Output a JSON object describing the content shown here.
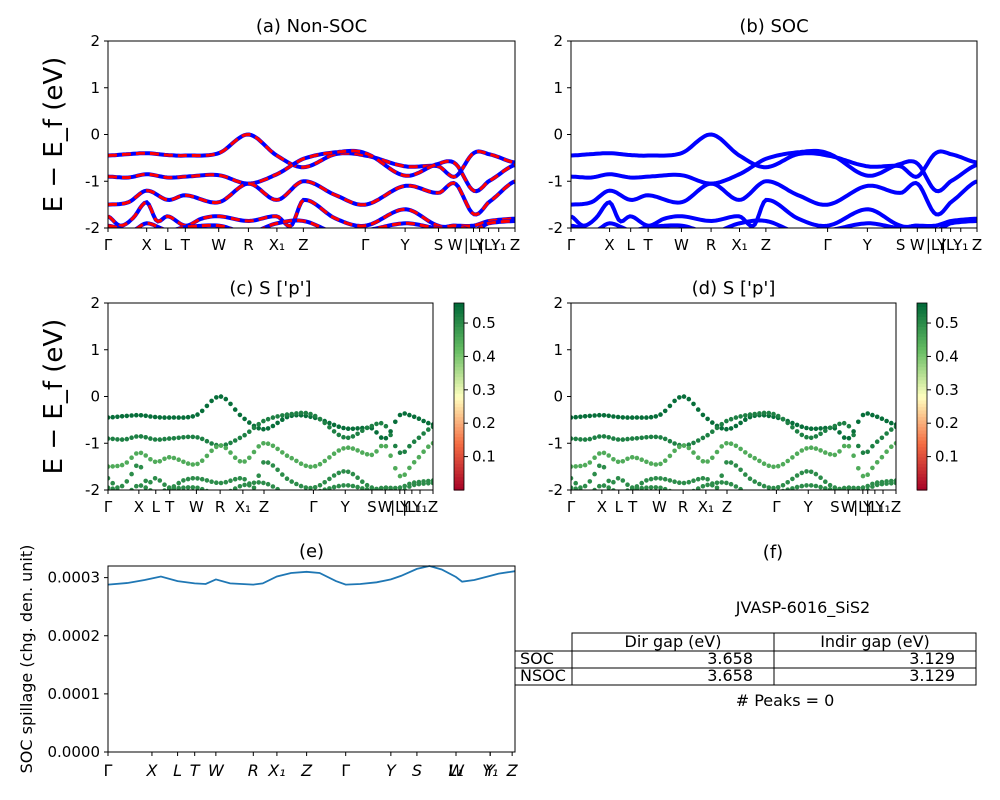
{
  "chart_data": [
    {
      "panel": "a",
      "type": "line",
      "title": "(a) Non-SOC",
      "ylabel": "E − E_f (eV)",
      "ylim": [
        -2,
        2
      ],
      "yticks": [
        -2,
        -1,
        0,
        1,
        2
      ],
      "xticks": [
        "Γ",
        "X",
        "L",
        "T",
        "W",
        "R",
        "X₁",
        "Z",
        "Γ",
        "Y",
        "S",
        "W",
        "|L₁",
        "Y",
        "|L₁",
        "Y₁",
        "Z"
      ],
      "x_kpath_positions": [
        0,
        0.095,
        0.147,
        0.19,
        0.272,
        0.345,
        0.415,
        0.48,
        0.632,
        0.73,
        0.812,
        0.853,
        0.898,
        0.913,
        0.935,
        0.96,
        1.0
      ],
      "series": [
        {
          "style": "blue solid + red dashed",
          "x": [
            0,
            0.05,
            0.095,
            0.147,
            0.19,
            0.272,
            0.345,
            0.415,
            0.48,
            0.56,
            0.632,
            0.73,
            0.812,
            0.853,
            0.898,
            0.935,
            1.0
          ],
          "values": [
            -0.45,
            -0.42,
            -0.4,
            -0.44,
            -0.45,
            -0.4,
            0.0,
            -0.45,
            -0.7,
            -0.42,
            -0.45,
            -0.68,
            -0.68,
            -0.9,
            -0.4,
            -0.42,
            -0.6
          ]
        },
        {
          "style": "blue solid + red dashed",
          "x": [
            0,
            0.05,
            0.095,
            0.147,
            0.19,
            0.272,
            0.345,
            0.415,
            0.48,
            0.56,
            0.632,
            0.73,
            0.812,
            0.853,
            0.898,
            0.935,
            1.0
          ],
          "values": [
            -0.9,
            -0.92,
            -0.85,
            -0.92,
            -0.9,
            -0.87,
            -1.05,
            -0.85,
            -0.52,
            -0.38,
            -0.4,
            -0.88,
            -0.63,
            -0.62,
            -1.2,
            -1.0,
            -0.65
          ]
        },
        {
          "style": "blue solid + red dashed",
          "x": [
            0,
            0.05,
            0.095,
            0.147,
            0.19,
            0.272,
            0.345,
            0.415,
            0.48,
            0.56,
            0.632,
            0.73,
            0.812,
            0.853,
            0.898,
            0.935,
            1.0
          ],
          "values": [
            -1.5,
            -1.45,
            -1.2,
            -1.4,
            -1.3,
            -1.45,
            -1.05,
            -1.4,
            -1.0,
            -1.3,
            -1.5,
            -1.1,
            -1.25,
            -1.05,
            -1.7,
            -1.45,
            -1.0
          ]
        },
        {
          "style": "blue solid + red dashed",
          "x": [
            0,
            0.03,
            0.06,
            0.095,
            0.12,
            0.147,
            0.19,
            0.23,
            0.272,
            0.345,
            0.415,
            0.45,
            0.48,
            0.56,
            0.632,
            0.73,
            0.812,
            0.853,
            0.898,
            0.935,
            1.0
          ],
          "values": [
            -1.75,
            -1.95,
            -1.8,
            -1.45,
            -1.85,
            -1.75,
            -1.95,
            -1.8,
            -1.75,
            -1.85,
            -1.75,
            -1.95,
            -1.4,
            -1.8,
            -1.95,
            -1.6,
            -1.95,
            -1.95,
            -1.95,
            -1.85,
            -1.8
          ]
        },
        {
          "style": "blue solid + red dashed",
          "x": [
            0,
            0.06,
            0.095,
            0.147,
            0.19,
            0.272,
            0.345,
            0.415,
            0.48,
            0.56,
            0.632,
            0.73,
            0.812,
            0.853,
            0.898,
            0.935,
            1.0
          ],
          "values": [
            -1.95,
            -2.05,
            -1.9,
            -2.05,
            -1.98,
            -1.95,
            -2.1,
            -1.9,
            -1.85,
            -2.1,
            -2.05,
            -1.9,
            -2.0,
            -1.95,
            -2.05,
            -1.9,
            -1.85
          ]
        }
      ]
    },
    {
      "panel": "b",
      "type": "line",
      "title": "(b) SOC",
      "ylim": [
        -2,
        2
      ],
      "yticks": [
        -2,
        -1,
        0,
        1,
        2
      ],
      "xticks": [
        "Γ",
        "X",
        "L",
        "T",
        "W",
        "R",
        "X₁",
        "Z",
        "Γ",
        "Y",
        "S",
        "W",
        "|L₁",
        "Y",
        "|L₁",
        "Y₁",
        "Z"
      ],
      "series_same_as": "a",
      "style": "blue solid"
    },
    {
      "panel": "c",
      "type": "scatter",
      "title": "(c)  S ['p']",
      "ylabel": "E − E_f (eV)",
      "ylim": [
        -2,
        2
      ],
      "yticks": [
        -2,
        -1,
        0,
        1,
        2
      ],
      "xticks": [
        "Γ",
        "X",
        "L",
        "T",
        "W",
        "R",
        "X₁",
        "Z",
        "Γ",
        "Y",
        "S",
        "W",
        "|L₁",
        "Y",
        "|L₁",
        "Y₁",
        "Z"
      ],
      "colorbar": {
        "ticks": [
          0.1,
          0.2,
          0.3,
          0.4,
          0.5
        ],
        "range": [
          0.0,
          0.56
        ],
        "colormap": "red-yellow-green"
      },
      "series_same_as": "a",
      "point_color_value": [
        0.55,
        0.52,
        0.45,
        0.5,
        0.5
      ]
    },
    {
      "panel": "d",
      "type": "scatter",
      "title": "(d) S ['p']",
      "ylim": [
        -2,
        2
      ],
      "yticks": [
        -2,
        -1,
        0,
        1,
        2
      ],
      "xticks": [
        "Γ",
        "X",
        "L",
        "T",
        "W",
        "R",
        "X₁",
        "Z",
        "Γ",
        "Y",
        "S",
        "W",
        "|L₁",
        "Y",
        "|L₁",
        "Y₁",
        "Z"
      ],
      "colorbar": {
        "ticks": [
          0.1,
          0.2,
          0.3,
          0.4,
          0.5
        ],
        "range": [
          0.0,
          0.56
        ],
        "colormap": "red-yellow-green"
      },
      "series_same_as": "a",
      "point_color_value": [
        0.55,
        0.52,
        0.45,
        0.5,
        0.5
      ]
    },
    {
      "panel": "e",
      "type": "line",
      "title": "(e)",
      "ylabel": "SOC spillage (chg. den. unit)",
      "ylim": [
        0,
        0.00032
      ],
      "yticks": [
        "0.0000",
        "0.0001",
        "0.0002",
        "0.0003"
      ],
      "ytick_values": [
        0,
        0.0001,
        0.0002,
        0.0003
      ],
      "xticks": [
        "Γ",
        "X",
        "L",
        "T",
        "W",
        "R",
        "X₁",
        "Z",
        "Γ",
        "Y",
        "S",
        "L₁",
        "W",
        "Y₁",
        "Y",
        "Z"
      ],
      "x_kpath_positions": [
        0,
        0.108,
        0.171,
        0.213,
        0.265,
        0.357,
        0.415,
        0.488,
        0.584,
        0.695,
        0.759,
        0.855,
        0.855,
        0.939,
        0.939,
        0.993
      ],
      "series": [
        {
          "color": "#1f77b4",
          "x": [
            0,
            0.05,
            0.09,
            0.11,
            0.13,
            0.171,
            0.213,
            0.24,
            0.265,
            0.3,
            0.357,
            0.38,
            0.415,
            0.45,
            0.488,
            0.52,
            0.56,
            0.584,
            0.62,
            0.66,
            0.695,
            0.72,
            0.759,
            0.79,
            0.82,
            0.855,
            0.87,
            0.9,
            0.939,
            0.96,
            1.0
          ],
          "values": [
            0.000288,
            0.000291,
            0.000296,
            0.000299,
            0.000302,
            0.000294,
            0.00029,
            0.000289,
            0.000297,
            0.00029,
            0.000288,
            0.00029,
            0.000302,
            0.000308,
            0.00031,
            0.000308,
            0.000294,
            0.000288,
            0.000289,
            0.000292,
            0.000297,
            0.000303,
            0.000315,
            0.00032,
            0.000314,
            0.000301,
            0.000293,
            0.000296,
            0.000303,
            0.000307,
            0.000311
          ]
        }
      ]
    }
  ],
  "panel_f": {
    "title": "(f)",
    "material": "JVASP-6016_SiS2",
    "table": {
      "headers": [
        "Dir gap (eV)",
        "Indir gap (eV)"
      ],
      "rows": [
        {
          "label": "SOC",
          "dir": "3.658",
          "indir": "3.129"
        },
        {
          "label": "NSOC",
          "dir": "3.658",
          "indir": "3.129"
        }
      ]
    },
    "peaks": "# Peaks = 0"
  }
}
